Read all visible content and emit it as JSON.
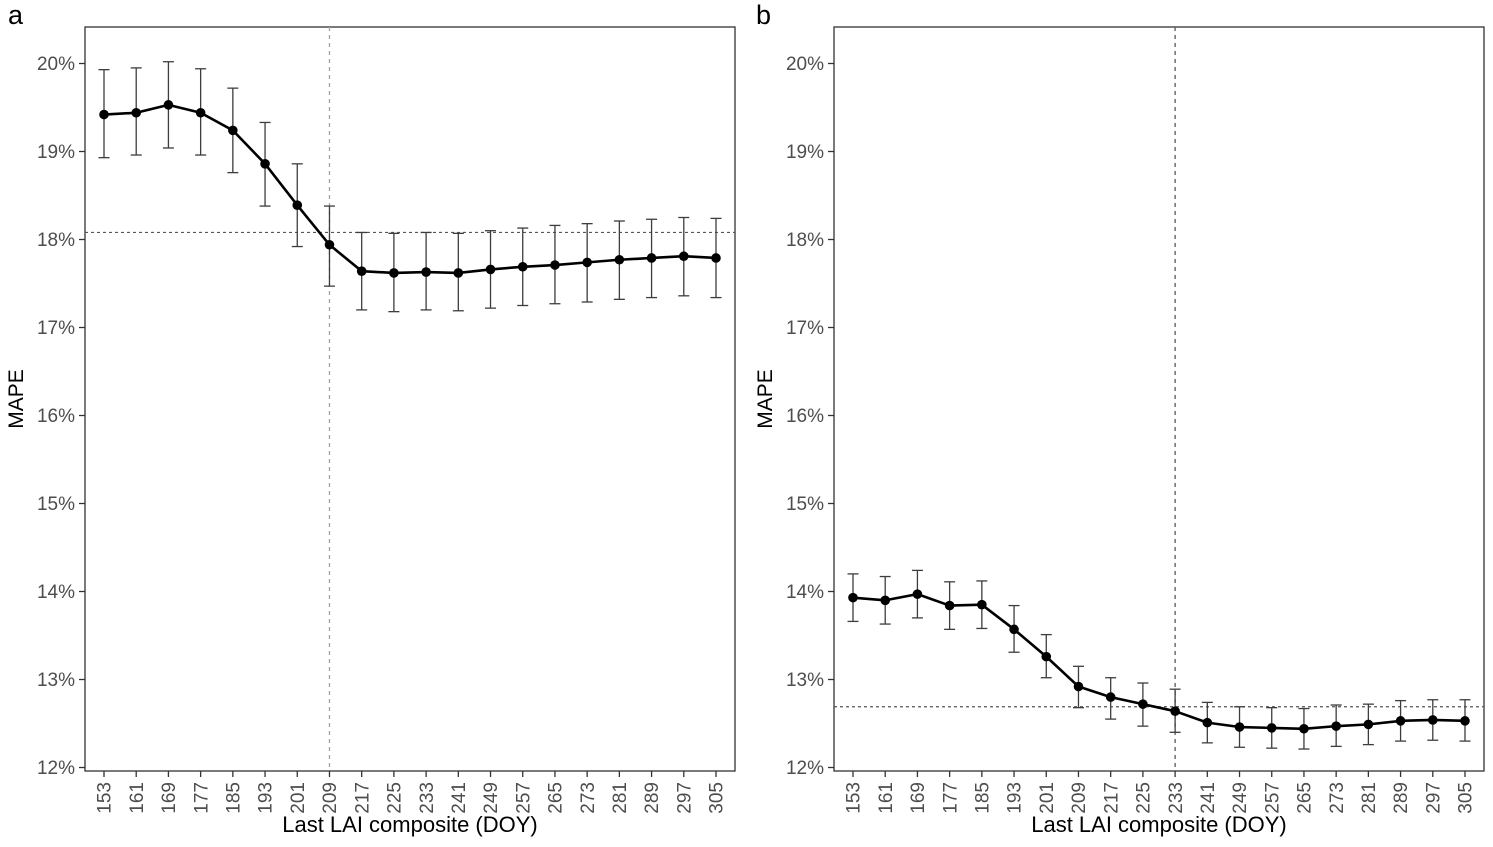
{
  "figure": {
    "description": "Two-panel line chart of MAPE versus last LAI composite day of year, with error bars and dashed reference lines",
    "background": "#ffffff"
  },
  "style": {
    "line": "#000000",
    "point": "#000000",
    "error_bar": "#3d3d3d",
    "axis_line": "#333333",
    "panel_border": "#333333",
    "axis_text": "#4d4d4d",
    "axis_title": "#000000"
  },
  "chart_data": [
    {
      "type": "line",
      "panel_label": "a",
      "xlabel": "Last LAI composite (DOY)",
      "ylabel": "MAPE",
      "units": "%",
      "ylim": [
        12,
        20.4
      ],
      "y_tick_values": [
        12,
        13,
        14,
        15,
        16,
        17,
        18,
        19,
        20
      ],
      "y_ticks": [
        "12%",
        "13%",
        "14%",
        "15%",
        "16%",
        "17%",
        "18%",
        "19%",
        "20%"
      ],
      "grid": false,
      "legend": "none",
      "x": [
        153,
        161,
        169,
        177,
        185,
        193,
        201,
        209,
        217,
        225,
        233,
        241,
        249,
        257,
        265,
        273,
        281,
        289,
        297,
        305
      ],
      "series": [
        {
          "name": "MAPE",
          "values": [
            19.42,
            19.44,
            19.53,
            19.44,
            19.24,
            18.86,
            18.39,
            17.94,
            17.64,
            17.62,
            17.63,
            17.62,
            17.66,
            17.69,
            17.71,
            17.74,
            17.77,
            17.79,
            17.81,
            17.79
          ],
          "lower": [
            18.93,
            18.96,
            19.04,
            18.96,
            18.76,
            18.38,
            17.92,
            17.47,
            17.2,
            17.18,
            17.2,
            17.19,
            17.22,
            17.25,
            17.27,
            17.29,
            17.32,
            17.34,
            17.36,
            17.34
          ],
          "upper": [
            19.93,
            19.95,
            20.02,
            19.94,
            19.72,
            19.33,
            18.86,
            18.38,
            18.08,
            18.07,
            18.08,
            18.07,
            18.1,
            18.13,
            18.16,
            18.18,
            18.21,
            18.23,
            18.25,
            18.24
          ]
        }
      ],
      "ref_lines": {
        "vertical_x": 209,
        "horizontal_y": 18.08,
        "style": "dashed",
        "vline_color": "#a3a3a3",
        "hline_color": "#565656"
      }
    },
    {
      "type": "line",
      "panel_label": "b",
      "xlabel": "Last LAI composite (DOY)",
      "ylabel": "MAPE",
      "units": "%",
      "ylim": [
        12,
        20.4
      ],
      "y_tick_values": [
        12,
        13,
        14,
        15,
        16,
        17,
        18,
        19,
        20
      ],
      "y_ticks": [
        "12%",
        "13%",
        "14%",
        "15%",
        "16%",
        "17%",
        "18%",
        "19%",
        "20%"
      ],
      "grid": false,
      "legend": "none",
      "x": [
        153,
        161,
        169,
        177,
        185,
        193,
        201,
        209,
        217,
        225,
        233,
        241,
        249,
        257,
        265,
        273,
        281,
        289,
        297,
        305
      ],
      "series": [
        {
          "name": "MAPE",
          "values": [
            13.93,
            13.9,
            13.97,
            13.84,
            13.85,
            13.57,
            13.26,
            12.92,
            12.8,
            12.72,
            12.64,
            12.51,
            12.46,
            12.45,
            12.44,
            12.47,
            12.49,
            12.53,
            12.54,
            12.53
          ],
          "lower": [
            13.66,
            13.63,
            13.7,
            13.57,
            13.58,
            13.31,
            13.02,
            12.68,
            12.55,
            12.47,
            12.4,
            12.28,
            12.23,
            12.22,
            12.21,
            12.24,
            12.26,
            12.3,
            12.31,
            12.3
          ],
          "upper": [
            14.2,
            14.17,
            14.24,
            14.11,
            14.12,
            13.84,
            13.51,
            13.15,
            13.02,
            12.96,
            12.89,
            12.74,
            12.69,
            12.68,
            12.67,
            12.71,
            12.72,
            12.76,
            12.77,
            12.77
          ]
        }
      ],
      "ref_lines": {
        "vertical_x": 233,
        "horizontal_y": 12.69,
        "style": "dashed",
        "vline_color": "#565656",
        "hline_color": "#565656"
      }
    }
  ]
}
